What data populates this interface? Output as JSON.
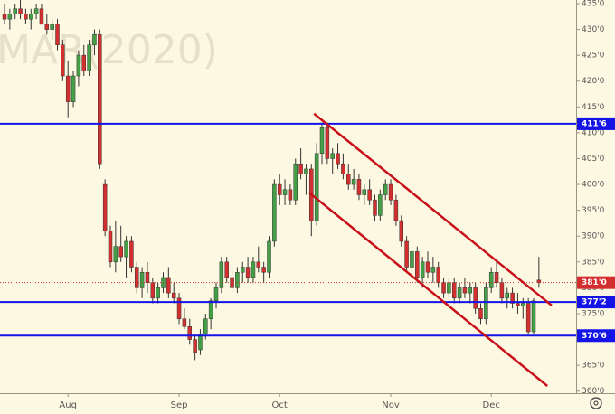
{
  "chart_data": {
    "type": "candlestick",
    "watermark": "MAR(2020)",
    "categories": [
      null,
      null,
      null,
      null,
      null,
      null,
      null,
      null,
      null,
      null,
      null,
      null,
      "Aug",
      null,
      null,
      null,
      null,
      null,
      null,
      null,
      null,
      null,
      null,
      null,
      null,
      null,
      null,
      null,
      null,
      null,
      null,
      null,
      null,
      "Sep",
      null,
      null,
      null,
      null,
      null,
      null,
      null,
      null,
      null,
      null,
      null,
      null,
      null,
      null,
      null,
      null,
      null,
      null,
      "Oct",
      null,
      null,
      null,
      null,
      null,
      null,
      null,
      null,
      null,
      null,
      null,
      null,
      null,
      null,
      null,
      null,
      null,
      null,
      null,
      null,
      "Nov",
      null,
      null,
      null,
      null,
      null,
      null,
      null,
      null,
      null,
      null,
      null,
      null,
      null,
      null,
      null,
      null,
      null,
      null,
      "Dec",
      null,
      null,
      null,
      null,
      null,
      null,
      null,
      null,
      null
    ],
    "ohlc": [
      [
        433,
        435,
        431,
        432
      ],
      [
        432,
        434,
        430,
        433
      ],
      [
        433,
        435,
        432,
        434
      ],
      [
        434,
        436,
        432,
        433
      ],
      [
        433,
        434,
        431,
        432
      ],
      [
        432,
        434,
        430,
        433
      ],
      [
        433,
        435,
        432,
        434
      ],
      [
        434,
        435,
        431,
        431
      ],
      [
        431,
        433,
        429,
        430
      ],
      [
        430,
        432,
        428,
        431
      ],
      [
        431,
        432,
        426,
        427
      ],
      [
        427,
        428,
        420,
        421
      ],
      [
        421,
        424,
        413,
        416
      ],
      [
        416,
        422,
        415,
        421
      ],
      [
        421,
        426,
        419,
        425
      ],
      [
        425,
        427,
        421,
        422
      ],
      [
        422,
        428,
        421,
        427
      ],
      [
        427,
        430,
        425,
        429
      ],
      [
        429,
        430,
        403,
        404
      ],
      [
        400,
        401,
        390,
        391
      ],
      [
        391,
        392,
        384,
        385
      ],
      [
        385,
        393,
        383,
        388
      ],
      [
        388,
        392,
        385,
        386
      ],
      [
        386,
        390,
        382,
        389
      ],
      [
        389,
        390,
        383,
        384
      ],
      [
        384,
        385,
        379,
        380
      ],
      [
        380,
        384,
        378,
        383
      ],
      [
        383,
        385,
        379,
        381
      ],
      [
        381,
        382,
        377,
        378
      ],
      [
        378,
        381,
        377,
        380
      ],
      [
        380,
        383,
        379,
        382
      ],
      [
        382,
        384,
        378,
        379
      ],
      [
        379,
        381,
        377,
        378
      ],
      [
        378,
        379,
        373,
        374
      ],
      [
        374,
        376,
        372,
        372.5
      ],
      [
        372.5,
        374,
        369,
        370
      ],
      [
        370,
        371,
        366,
        367.5
      ],
      [
        368,
        372,
        367,
        371
      ],
      [
        371,
        375,
        370,
        374
      ],
      [
        374,
        378,
        372,
        377.5
      ],
      [
        377.5,
        381,
        376,
        380
      ],
      [
        380,
        386,
        379,
        385
      ],
      [
        385,
        386,
        381,
        382
      ],
      [
        382,
        384,
        379,
        380
      ],
      [
        380,
        384,
        379,
        383
      ],
      [
        383,
        385,
        381,
        384
      ],
      [
        384,
        386,
        381,
        382
      ],
      [
        382,
        386,
        381,
        385
      ],
      [
        385,
        388,
        383,
        384
      ],
      [
        384,
        385,
        381,
        383
      ],
      [
        383,
        390,
        382,
        389
      ],
      [
        389,
        401,
        388,
        400
      ],
      [
        400,
        402,
        396,
        398
      ],
      [
        398,
        401,
        396,
        399
      ],
      [
        399,
        400,
        396,
        397
      ],
      [
        397,
        405,
        396,
        404
      ],
      [
        404,
        407,
        401,
        402
      ],
      [
        402,
        404,
        398,
        403
      ],
      [
        403,
        404,
        390,
        393
      ],
      [
        393,
        408,
        392,
        406
      ],
      [
        406,
        412,
        404,
        411
      ],
      [
        411,
        412,
        404,
        405
      ],
      [
        405,
        407,
        402,
        406
      ],
      [
        406,
        408,
        403,
        404
      ],
      [
        404,
        406,
        401,
        402
      ],
      [
        402,
        404,
        399,
        400
      ],
      [
        400,
        403,
        399,
        401
      ],
      [
        401,
        402,
        397,
        398
      ],
      [
        398,
        400,
        396,
        399
      ],
      [
        399,
        401,
        396,
        397
      ],
      [
        397,
        398,
        393,
        394
      ],
      [
        394,
        399,
        393,
        398
      ],
      [
        398,
        401,
        397,
        400
      ],
      [
        400,
        401,
        396,
        397
      ],
      [
        397,
        398,
        392,
        393
      ],
      [
        393,
        394,
        388,
        389
      ],
      [
        389,
        390,
        383,
        384
      ],
      [
        384,
        388,
        382,
        387
      ],
      [
        387,
        388,
        381,
        382
      ],
      [
        382,
        386,
        380,
        385
      ],
      [
        385,
        387,
        382,
        383
      ],
      [
        383,
        386,
        381,
        384
      ],
      [
        384,
        385,
        380,
        381
      ],
      [
        381,
        382,
        378,
        379
      ],
      [
        379,
        382,
        378,
        381
      ],
      [
        381,
        382,
        377,
        378
      ],
      [
        378,
        381,
        377,
        380
      ],
      [
        380,
        382,
        378,
        379
      ],
      [
        379,
        381,
        377,
        380
      ],
      [
        380,
        381,
        375,
        376
      ],
      [
        376,
        377,
        373,
        374
      ],
      [
        374,
        381,
        373,
        380
      ],
      [
        380,
        384,
        379,
        383
      ],
      [
        383,
        385,
        380,
        381
      ],
      [
        381,
        382,
        377,
        378
      ],
      [
        378,
        380,
        376,
        379
      ],
      [
        379,
        380,
        376,
        377
      ],
      [
        377,
        379,
        375,
        376.5
      ],
      [
        376.5,
        378,
        374,
        377
      ],
      [
        377,
        378,
        371,
        371.5
      ],
      [
        371.5,
        378,
        371,
        377.5
      ],
      [
        381.5,
        386,
        380,
        381
      ]
    ],
    "up_color": "#43a047",
    "down_color": "#d32f2f",
    "ylim": [
      359.6,
      435.7
    ],
    "yticks": [
      {
        "value": 360,
        "label": "360'0"
      },
      {
        "value": 365,
        "label": "365'0"
      },
      {
        "value": 370,
        "label": "370'0"
      },
      {
        "value": 375,
        "label": "375'0"
      },
      {
        "value": 380,
        "label": "380'0"
      },
      {
        "value": 385,
        "label": "385'0"
      },
      {
        "value": 390,
        "label": "390'0"
      },
      {
        "value": 395,
        "label": "395'0"
      },
      {
        "value": 400,
        "label": "400'0"
      },
      {
        "value": 405,
        "label": "405'0"
      },
      {
        "value": 410,
        "label": "410'0"
      },
      {
        "value": 415,
        "label": "415'0"
      },
      {
        "value": 420,
        "label": "420'0"
      },
      {
        "value": 425,
        "label": "425'0"
      },
      {
        "value": 430,
        "label": "430'0"
      },
      {
        "value": 435,
        "label": "435'0"
      }
    ],
    "levels": [
      {
        "value": 411.75,
        "label": "411'6",
        "color": "#1414e6",
        "style": "solid"
      },
      {
        "value": 377.25,
        "label": "377'2",
        "color": "#1414e6",
        "style": "solid"
      },
      {
        "value": 370.75,
        "label": "370'6",
        "color": "#1414e6",
        "style": "solid"
      },
      {
        "value": 381,
        "label": "381'0",
        "color": "#d32f2f",
        "style": "dotted"
      }
    ],
    "trend_lines": [
      {
        "x": [
          58.5,
          103.4
        ],
        "y": [
          413.7,
          376.6
        ],
        "color": "#c8101a"
      },
      {
        "x": [
          57.6,
          102.6
        ],
        "y": [
          398.4,
          361
        ],
        "color": "#c8101a"
      }
    ]
  }
}
